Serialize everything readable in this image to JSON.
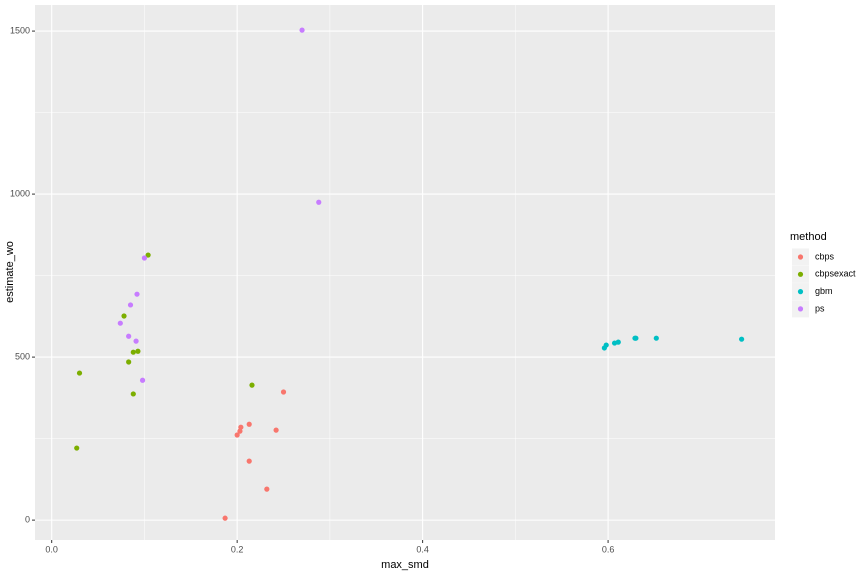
{
  "chart_data": {
    "type": "scatter",
    "x_label": "max_smd",
    "y_label": "estimate_wo",
    "legend_title": "method",
    "legend_position": "right",
    "grid": true,
    "xlim": [
      -0.018,
      0.78
    ],
    "ylim": [
      -61,
      1580
    ],
    "xticks": [
      {
        "value": 0,
        "label": "0.0"
      },
      0.2,
      0.4,
      0.6
    ],
    "yticks": [
      0,
      500,
      1000,
      1500
    ],
    "series": [
      {
        "name": "cbps",
        "color": "#f8766d",
        "x": [
          0.187,
          0.2,
          0.203,
          0.204,
          0.213,
          0.213,
          0.242,
          0.25,
          0.232
        ],
        "values": [
          6,
          261,
          273,
          285,
          294,
          181,
          276,
          393,
          95
        ]
      },
      {
        "name": "cbpsexact",
        "color": "#7cae00",
        "x": [
          0.027,
          0.03,
          0.078,
          0.083,
          0.088,
          0.093,
          0.088,
          0.104,
          0.216
        ],
        "values": [
          221,
          451,
          626,
          485,
          515,
          518,
          387,
          813,
          414
        ]
      },
      {
        "name": "gbm",
        "color": "#00bfc4",
        "x": [
          0.596,
          0.598,
          0.607,
          0.611,
          0.629,
          0.63,
          0.652,
          0.744
        ],
        "values": [
          528,
          537,
          543,
          546,
          558,
          558,
          558,
          555
        ]
      },
      {
        "name": "ps",
        "color": "#c77cff",
        "x": [
          0.27,
          0.288,
          0.1,
          0.092,
          0.085,
          0.074,
          0.083,
          0.091,
          0.098
        ],
        "values": [
          1503,
          975,
          804,
          693,
          660,
          604,
          564,
          549,
          429
        ]
      }
    ]
  }
}
